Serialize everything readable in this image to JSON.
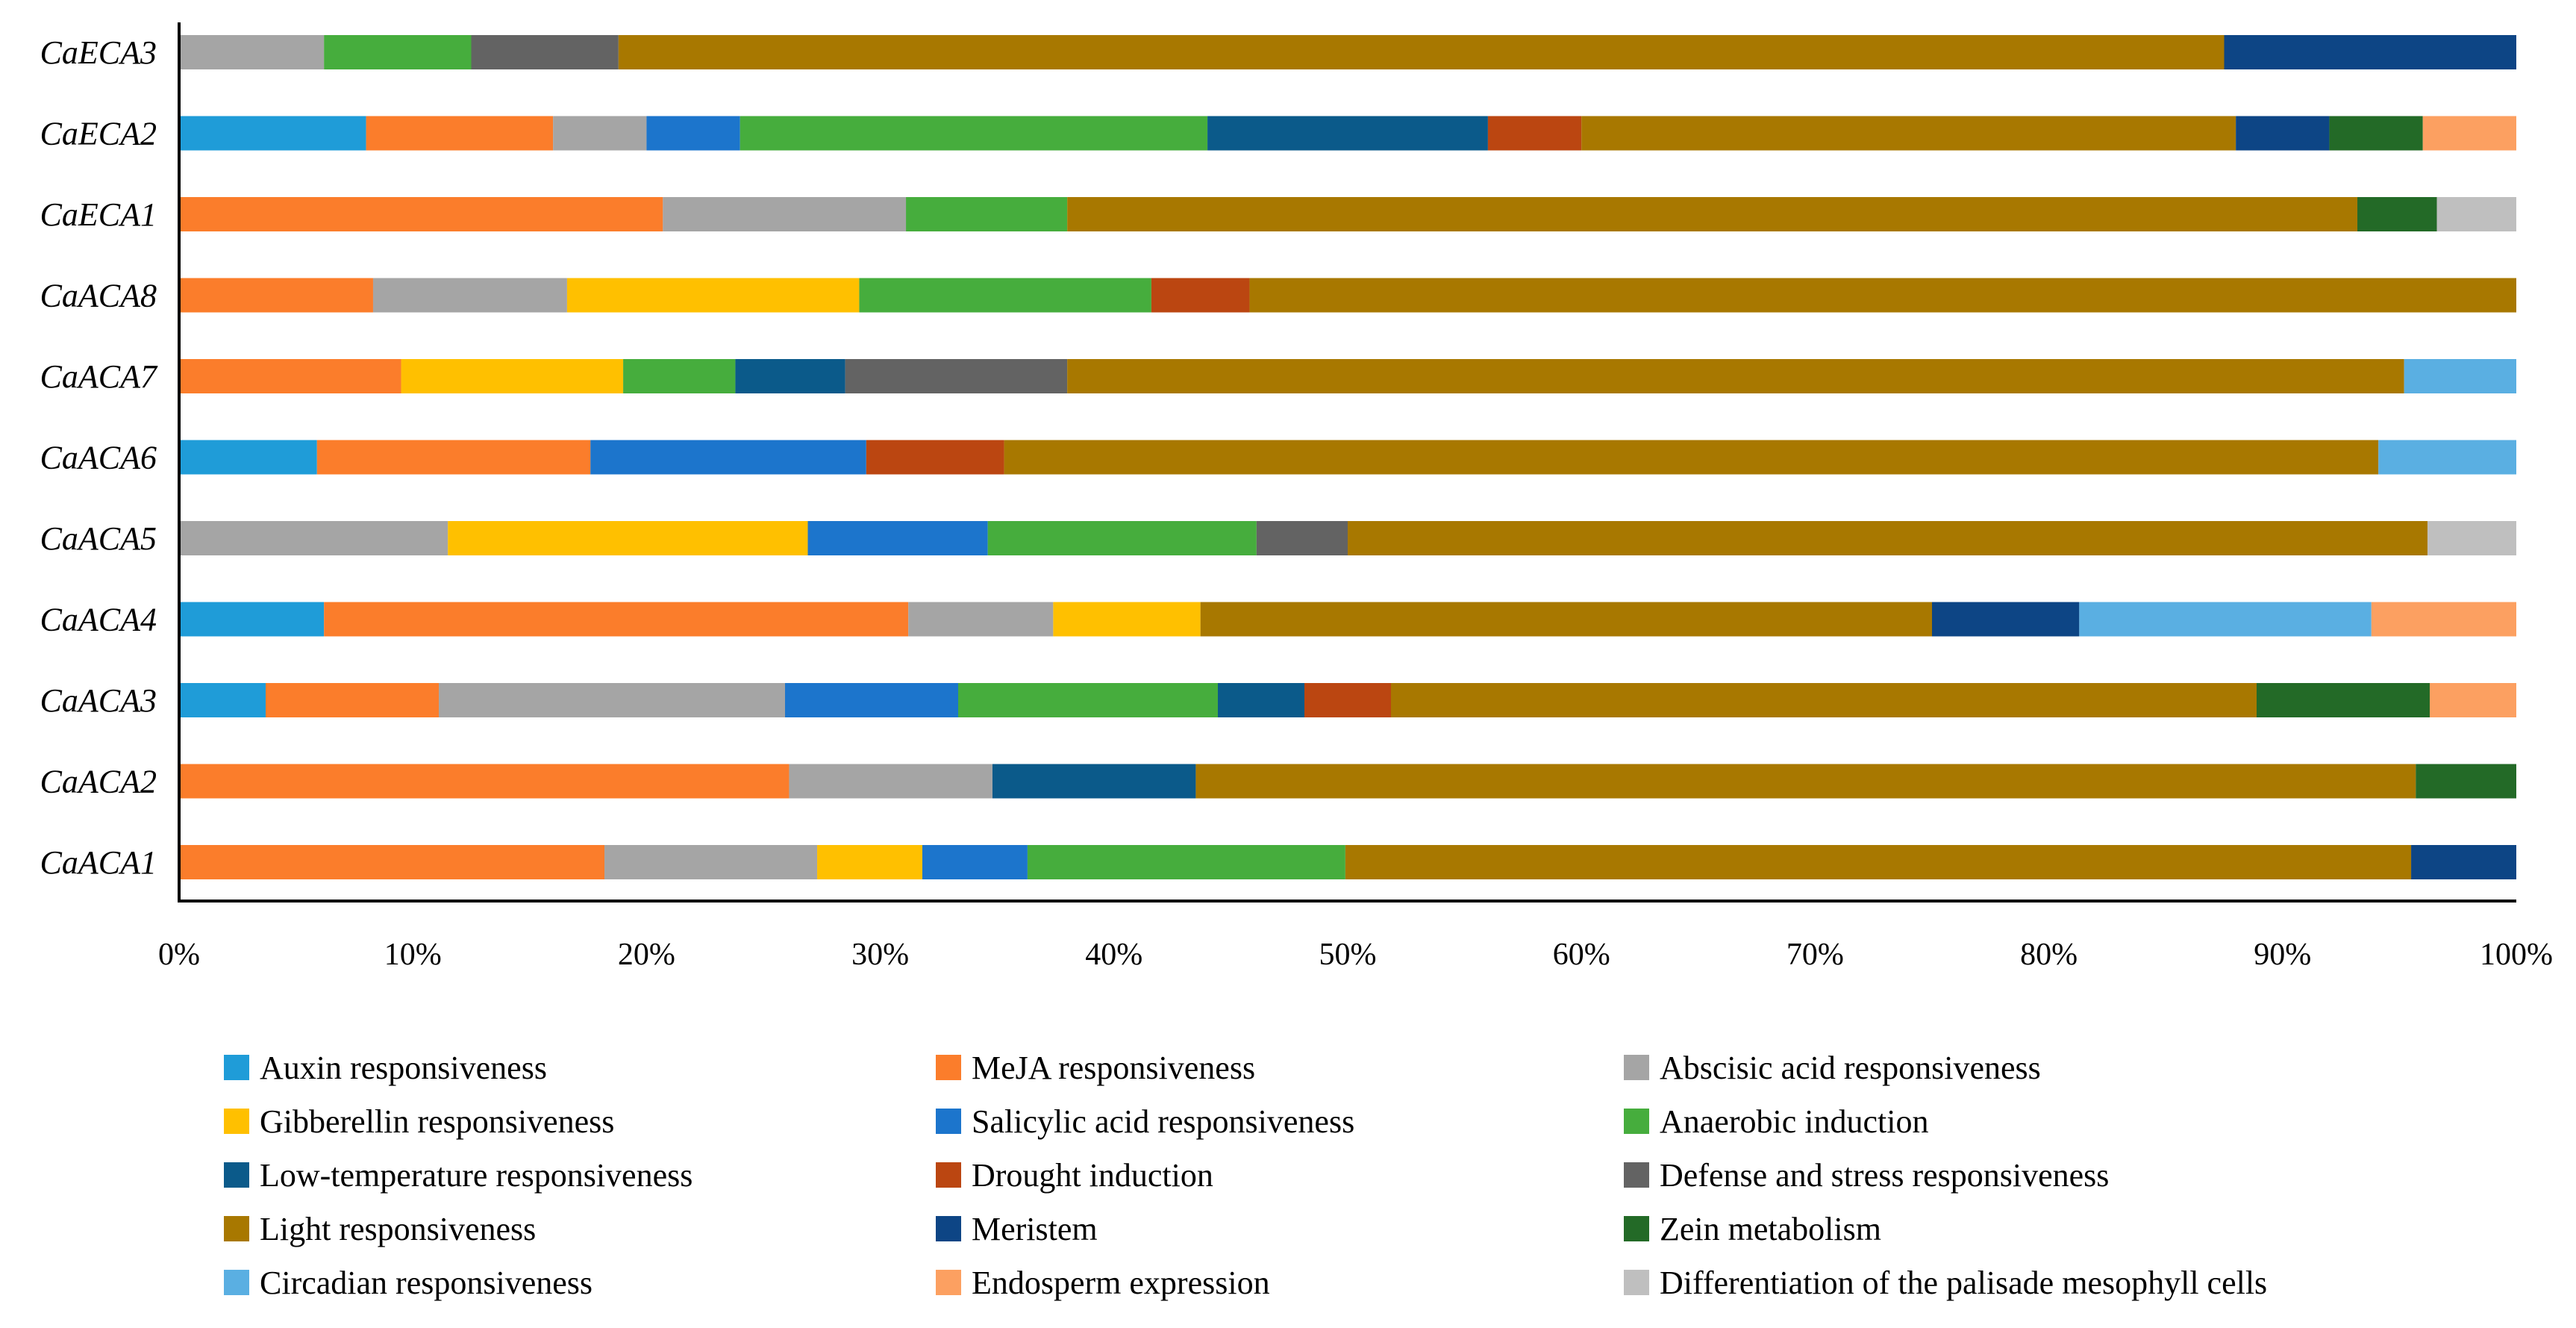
{
  "chart_data": {
    "type": "bar",
    "orientation": "horizontal",
    "stacked": "percent",
    "title": "",
    "xlabel": "",
    "ylabel": "",
    "xlim": [
      0,
      100
    ],
    "x_ticks": [
      "0%",
      "10%",
      "20%",
      "30%",
      "40%",
      "50%",
      "60%",
      "70%",
      "80%",
      "90%",
      "100%"
    ],
    "grid": false,
    "legend_position": "bottom",
    "categories": [
      "CaECA3",
      "CaECA2",
      "CaECA1",
      "CaACA8",
      "CaACA7",
      "CaACA6",
      "CaACA5",
      "CaACA4",
      "CaACA3",
      "CaACA2",
      "CaACA1"
    ],
    "series": [
      {
        "name": "Auxin responsiveness",
        "color": "#1f9cd8",
        "values": [
          0,
          8.0,
          0,
          0,
          0,
          5.9,
          0,
          6.2,
          3.7,
          0,
          0
        ]
      },
      {
        "name": "MeJA responsiveness",
        "color": "#fb7d2b",
        "values": [
          0,
          8.0,
          20.7,
          8.3,
          9.5,
          11.7,
          0,
          25.0,
          7.4,
          26.1,
          18.2
        ]
      },
      {
        "name": "Abscisic acid responsiveness",
        "color": "#a5a5a5",
        "values": [
          6.2,
          4.0,
          10.4,
          8.3,
          0,
          0,
          11.5,
          6.2,
          14.8,
          8.7,
          9.1
        ]
      },
      {
        "name": "Gibberellin responsiveness",
        "color": "#ffc000",
        "values": [
          0,
          0,
          0,
          12.5,
          9.5,
          0,
          15.4,
          6.3,
          0,
          0,
          4.5
        ]
      },
      {
        "name": "Salicylic acid responsiveness",
        "color": "#1c75cc",
        "values": [
          0,
          4.0,
          0,
          0,
          0,
          11.8,
          7.7,
          0,
          7.4,
          0,
          4.5
        ]
      },
      {
        "name": "Anaerobic induction",
        "color": "#46ad3d",
        "values": [
          6.3,
          20.0,
          6.9,
          12.5,
          4.8,
          0,
          11.5,
          0,
          11.1,
          0,
          13.6
        ]
      },
      {
        "name": "Low-temperature responsiveness",
        "color": "#0b5a8a",
        "values": [
          0,
          12.0,
          0,
          0,
          4.7,
          0,
          0,
          0,
          3.7,
          8.7,
          0
        ]
      },
      {
        "name": "Drought induction",
        "color": "#bb4611",
        "values": [
          0,
          4.0,
          0,
          4.2,
          0,
          5.9,
          0,
          0,
          3.7,
          0,
          0
        ]
      },
      {
        "name": "Defense and stress responsiveness",
        "color": "#636363",
        "values": [
          6.3,
          0,
          0,
          0,
          9.5,
          0,
          3.9,
          0,
          0,
          0,
          0
        ]
      },
      {
        "name": "Light responsiveness",
        "color": "#a87800",
        "values": [
          68.7,
          28.0,
          55.2,
          54.2,
          57.2,
          58.8,
          46.2,
          31.3,
          37.0,
          52.2,
          45.6
        ]
      },
      {
        "name": "Meristem",
        "color": "#0d4585",
        "values": [
          12.5,
          4.0,
          0,
          0,
          0,
          0,
          0,
          6.3,
          0,
          0,
          4.5
        ]
      },
      {
        "name": "Zein metabolism",
        "color": "#236a27",
        "values": [
          0,
          4.0,
          3.4,
          0,
          0,
          0,
          0,
          0,
          7.4,
          4.3,
          0
        ]
      },
      {
        "name": "Circadian responsiveness",
        "color": "#5aafe2",
        "values": [
          0,
          0,
          0,
          0,
          4.8,
          5.9,
          0,
          12.5,
          0,
          0,
          0
        ]
      },
      {
        "name": "Endosperm expression",
        "color": "#fca061",
        "values": [
          0,
          4.0,
          0,
          0,
          0,
          0,
          0,
          6.2,
          3.7,
          0,
          0
        ]
      },
      {
        "name": "Differentiation of the palisade mesophyll cells",
        "color": "#bfbfbf",
        "values": [
          0,
          0,
          3.4,
          0,
          0,
          0,
          3.8,
          0,
          0,
          0,
          0
        ]
      }
    ]
  }
}
